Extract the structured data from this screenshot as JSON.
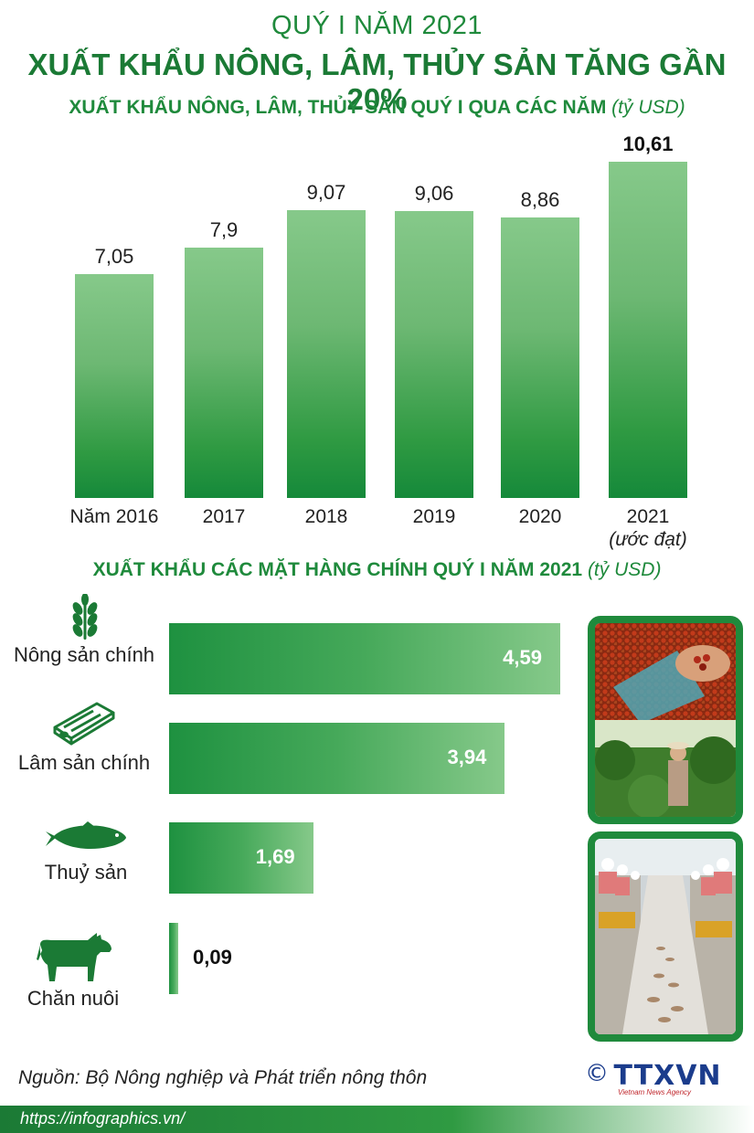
{
  "header": {
    "kicker": "QUÝ I NĂM 2021",
    "headline": "XUẤT KHẨU NÔNG, LÂM, THỦY SẢN TĂNG GẦN 20%"
  },
  "chart_data": [
    {
      "type": "bar",
      "title": "XUẤT KHẨU NÔNG, LÂM, THỦY SẢN QUÝ I QUA CÁC NĂM",
      "unit": "(tỷ USD)",
      "categories": [
        {
          "label": "Năm 2016",
          "sub": ""
        },
        {
          "label": "2017",
          "sub": ""
        },
        {
          "label": "2018",
          "sub": ""
        },
        {
          "label": "2019",
          "sub": ""
        },
        {
          "label": "2020",
          "sub": ""
        },
        {
          "label": "2021",
          "sub": "(ước đạt)"
        }
      ],
      "values": [
        7.05,
        7.9,
        9.07,
        9.06,
        8.86,
        10.61
      ],
      "value_labels": [
        "7,05",
        "7,9",
        "9,07",
        "9,06",
        "8,86",
        "10,61"
      ],
      "highlight_index": 5,
      "colors": {
        "top": "#86c98a",
        "bottom": "#15893a"
      }
    },
    {
      "type": "bar",
      "orientation": "horizontal",
      "title": "XUẤT KHẨU CÁC MẶT HÀNG CHÍNH QUÝ I NĂM 2021",
      "unit": "(tỷ USD)",
      "categories": [
        "Nông sản chính",
        "Lâm sản chính",
        "Thuỷ sản",
        "Chăn nuôi"
      ],
      "values": [
        4.59,
        3.94,
        1.69,
        0.09
      ],
      "value_labels": [
        "4,59",
        "3,94",
        "1,69",
        "0,09"
      ],
      "icons": [
        "wheat-icon",
        "lumber-icon",
        "fish-icon",
        "cow-icon"
      ],
      "colors": {
        "left": "#1e9140",
        "right": "#86c98a"
      }
    }
  ],
  "source": "Nguồn: Bộ Nông nghiệp và Phát triển nông thôn",
  "footer_url": "https://infographics.vn/",
  "logo": {
    "symbol": "©",
    "name": "TTXVN",
    "tagline": "Vietnam News Agency"
  }
}
